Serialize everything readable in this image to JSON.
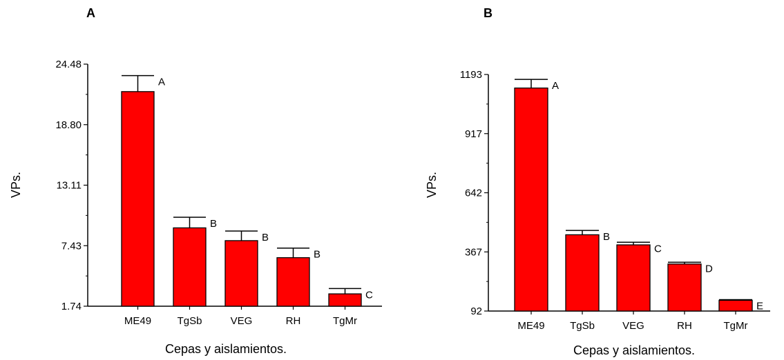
{
  "chart_data": [
    {
      "type": "bar",
      "panel": "A",
      "categories": [
        "ME49",
        "TgSb",
        "VEG",
        "RH",
        "TgMr"
      ],
      "values": [
        21.9,
        9.1,
        7.9,
        6.3,
        2.9
      ],
      "errors": [
        1.5,
        1.0,
        0.9,
        0.9,
        0.5
      ],
      "significance": [
        "A",
        "B",
        "B",
        "B",
        "C"
      ],
      "ylim": [
        1.74,
        24.48
      ],
      "yticks": [
        "1.74",
        "7.43",
        "13.11",
        "18.80",
        "24.48"
      ],
      "ylabel": "VPs.",
      "xlabel": "Cepas y aislamientos.",
      "bar_color": "#ff0000"
    },
    {
      "type": "bar",
      "panel": "B",
      "categories": [
        "ME49",
        "TgSb",
        "VEG",
        "RH",
        "TgMr"
      ],
      "values": [
        1130,
        447,
        400,
        311,
        142
      ],
      "errors": [
        40,
        20,
        12,
        8,
        3
      ],
      "significance": [
        "A",
        "B",
        "C",
        "D",
        "E"
      ],
      "ylim": [
        92,
        1193
      ],
      "yticks": [
        "92",
        "367",
        "642",
        "917",
        "1193"
      ],
      "ylabel": "VPs.",
      "xlabel": "Cepas y aislamientos.",
      "bar_color": "#ff0000"
    }
  ]
}
